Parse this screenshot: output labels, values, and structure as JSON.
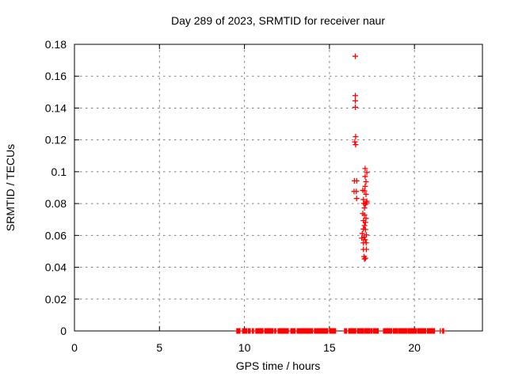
{
  "chart_data": {
    "type": "scatter",
    "title": "Day 289 of 2023, SRMTID for receiver naur",
    "xlabel": "GPS time / hours",
    "ylabel": "SRMTID / TECUs",
    "xlim": [
      0,
      24
    ],
    "ylim": [
      0,
      0.18
    ],
    "x_ticks": [
      {
        "v": 0,
        "label": "0"
      },
      {
        "v": 5,
        "label": "5"
      },
      {
        "v": 10,
        "label": "10"
      },
      {
        "v": 15,
        "label": "15"
      },
      {
        "v": 20,
        "label": "20"
      }
    ],
    "y_ticks": [
      {
        "v": 0,
        "label": "0"
      },
      {
        "v": 0.02,
        "label": "0.02"
      },
      {
        "v": 0.04,
        "label": "0.04"
      },
      {
        "v": 0.06,
        "label": "0.06"
      },
      {
        "v": 0.08,
        "label": "0.08"
      },
      {
        "v": 0.1,
        "label": "0.1"
      },
      {
        "v": 0.12,
        "label": "0.12"
      },
      {
        "v": 0.14,
        "label": "0.14"
      },
      {
        "v": 0.16,
        "label": "0.16"
      },
      {
        "v": 0.18,
        "label": "0.18"
      }
    ],
    "grid": true,
    "legend": "none",
    "marker": "plus",
    "series": [
      {
        "name": "SRMTID",
        "points": [
          [
            16.52,
            0.1725
          ],
          [
            16.52,
            0.1478
          ],
          [
            16.52,
            0.1445
          ],
          [
            16.52,
            0.1405
          ],
          [
            16.54,
            0.122
          ],
          [
            16.49,
            0.1187
          ],
          [
            16.54,
            0.117
          ],
          [
            17.1,
            0.102
          ],
          [
            17.2,
            0.0995
          ],
          [
            17.1,
            0.097
          ],
          [
            16.47,
            0.0943
          ],
          [
            16.6,
            0.0943
          ],
          [
            17.15,
            0.0937
          ],
          [
            17.1,
            0.0908
          ],
          [
            16.45,
            0.0876
          ],
          [
            16.58,
            0.0876
          ],
          [
            16.96,
            0.0883
          ],
          [
            17.06,
            0.088
          ],
          [
            17.15,
            0.0858
          ],
          [
            16.6,
            0.0832
          ],
          [
            17.0,
            0.0825
          ],
          [
            17.2,
            0.0815
          ],
          [
            17.02,
            0.0801
          ],
          [
            17.12,
            0.0796
          ],
          [
            17.18,
            0.0806
          ],
          [
            17.06,
            0.0773
          ],
          [
            16.96,
            0.0737
          ],
          [
            17.06,
            0.0728
          ],
          [
            17.15,
            0.0707
          ],
          [
            17.0,
            0.0693
          ],
          [
            17.12,
            0.0682
          ],
          [
            17.06,
            0.0662
          ],
          [
            17.0,
            0.064
          ],
          [
            17.12,
            0.0637
          ],
          [
            16.93,
            0.0612
          ],
          [
            17.17,
            0.0603
          ],
          [
            17.04,
            0.059
          ],
          [
            16.9,
            0.0583
          ],
          [
            17.1,
            0.0573
          ],
          [
            17.0,
            0.0553
          ],
          [
            17.16,
            0.0553
          ],
          [
            17.0,
            0.0512
          ],
          [
            17.17,
            0.0512
          ],
          [
            17.04,
            0.0467
          ],
          [
            17.12,
            0.0457
          ],
          [
            17.06,
            0.0452
          ]
        ]
      }
    ],
    "zero_value_segments_hours": [
      [
        9.55,
        9.78
      ],
      [
        9.89,
        10.13
      ],
      [
        10.22,
        10.37
      ],
      [
        10.47,
        10.56
      ],
      [
        10.67,
        11.11
      ],
      [
        11.2,
        11.7
      ],
      [
        11.78,
        11.88
      ],
      [
        11.98,
        12.63
      ],
      [
        12.73,
        13.01
      ],
      [
        13.1,
        14.05
      ],
      [
        14.12,
        14.91
      ],
      [
        15.01,
        15.19
      ],
      [
        15.24,
        15.38
      ],
      [
        15.89,
        16.05
      ],
      [
        16.13,
        16.55
      ],
      [
        16.65,
        16.83
      ],
      [
        16.88,
        17.02
      ],
      [
        17.07,
        17.38
      ],
      [
        17.44,
        17.54
      ],
      [
        17.58,
        17.77
      ],
      [
        17.81,
        17.91
      ],
      [
        18.18,
        18.69
      ],
      [
        18.76,
        19.02
      ],
      [
        19.07,
        19.55
      ],
      [
        19.62,
        20.12
      ],
      [
        20.18,
        20.69
      ],
      [
        20.76,
        21.23
      ],
      [
        21.52,
        21.57
      ],
      [
        21.66,
        21.72
      ]
    ],
    "zero_marker_step_hours": 0.06
  },
  "colors": {
    "marker": "#ff0000",
    "grid": "#7f7f7f",
    "axis": "#000000",
    "background": "#ffffff"
  }
}
